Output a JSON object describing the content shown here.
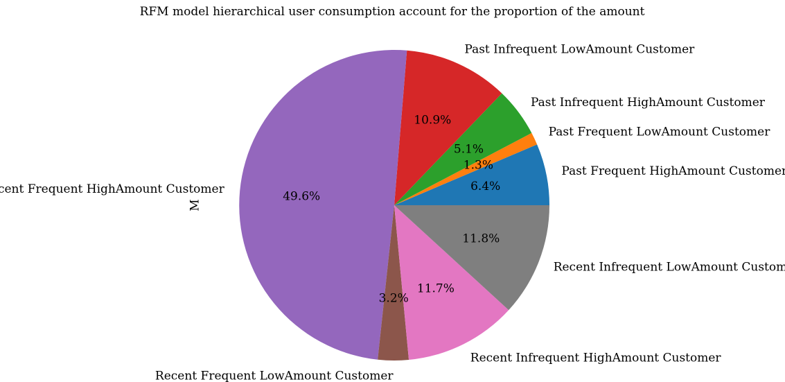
{
  "chart_data": {
    "type": "pie",
    "title": "RFM model hierarchical user consumption account for the proportion of the amount",
    "ylabel": "M",
    "start_angle_deg": 0,
    "direction": "counterclockwise",
    "slices": [
      {
        "label": "Past Frequent HighAmount Customer",
        "value": 6.4,
        "pct_label": "6.4%",
        "color": "#1f77b4"
      },
      {
        "label": "Past Frequent LowAmount Customer",
        "value": 1.3,
        "pct_label": "1.3%",
        "color": "#ff7f0e"
      },
      {
        "label": "Past Infrequent HighAmount Customer",
        "value": 5.1,
        "pct_label": "5.1%",
        "color": "#2ca02c"
      },
      {
        "label": "Past Infrequent LowAmount Customer",
        "value": 10.9,
        "pct_label": "10.9%",
        "color": "#d62728"
      },
      {
        "label": "Recent Frequent HighAmount Customer",
        "value": 49.6,
        "pct_label": "49.6%",
        "color": "#9467bd"
      },
      {
        "label": "Recent Frequent LowAmount Customer",
        "value": 3.2,
        "pct_label": "3.2%",
        "color": "#8c564b"
      },
      {
        "label": "Recent Infrequent HighAmount Customer",
        "value": 11.7,
        "pct_label": "11.7%",
        "color": "#e377c2"
      },
      {
        "label": "Recent Infrequent LowAmount Customer",
        "value": 11.8,
        "pct_label": "11.8%",
        "color": "#7f7f7f"
      }
    ]
  }
}
